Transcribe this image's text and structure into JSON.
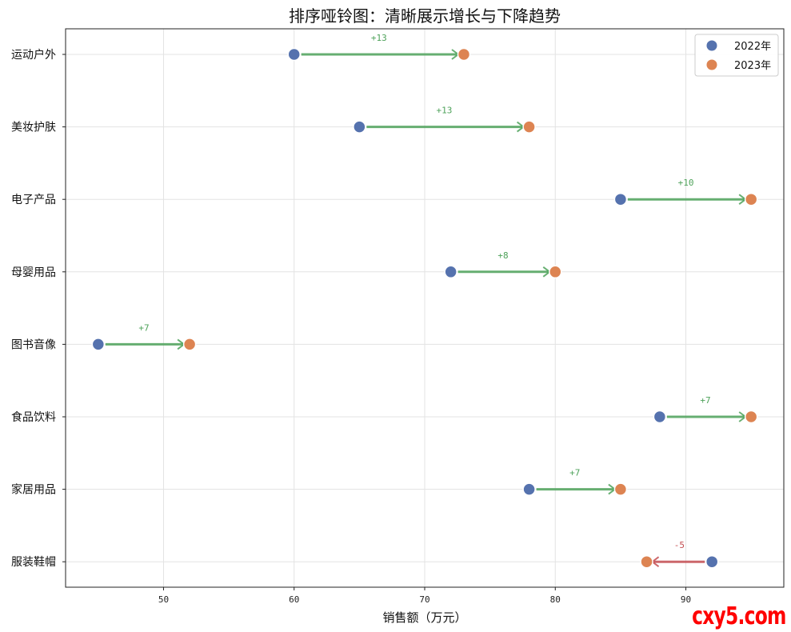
{
  "chart_data": {
    "type": "dumbbell",
    "title": "排序哑铃图：清晰展示增长与下降趋势",
    "xlabel": "销售额（万元）",
    "xlim": [
      42.5,
      97.5
    ],
    "xticks": [
      50,
      60,
      70,
      80,
      90
    ],
    "grid": true,
    "legend_position": "top-right",
    "categories": [
      "运动户外",
      "美妆护肤",
      "电子产品",
      "母婴用品",
      "图书音像",
      "食品饮料",
      "家居用品",
      "服装鞋帽"
    ],
    "series": [
      {
        "name": "2022年",
        "color": "#5572AE",
        "values": [
          60,
          65,
          85,
          72,
          45,
          88,
          78,
          92
        ]
      },
      {
        "name": "2023年",
        "color": "#DD8452",
        "values": [
          73,
          78,
          95,
          80,
          52,
          95,
          85,
          87
        ]
      }
    ],
    "differences": [
      "+13",
      "+13",
      "+10",
      "+8",
      "+7",
      "+7",
      "+7",
      "-5"
    ],
    "increase_color": "#4EA25A",
    "decrease_color": "#C44E52"
  },
  "watermark": "cxy5.com"
}
